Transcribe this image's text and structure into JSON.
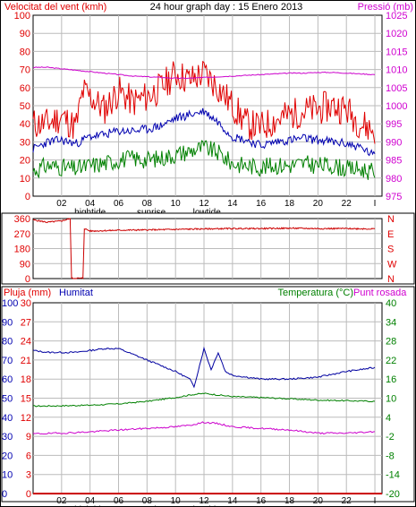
{
  "colors": {
    "wind_axis": "#e00000",
    "pressure_axis": "#d000d0",
    "gust": "#e00000",
    "average": "#0000b0",
    "minimum": "#008000",
    "pressure": "#cc00cc",
    "direction": "#cc0000",
    "humidity": "#0000a0",
    "temperature": "#008000",
    "dewpoint": "#cc00cc",
    "rain": "#cc0000",
    "rain_axis": "#e00000",
    "humidity_axis": "#0000b0",
    "temp_axis": "#008000",
    "dew_label": "#d000d0",
    "grid": "#bbbbbb",
    "frame": "#000000"
  },
  "header": {
    "left": "Velocitat del vent (kmh)",
    "center": "24 hour graph day : 15 Enero 2013",
    "right": "Pressió (mb)"
  },
  "x_axis": {
    "tick_labels": [
      "02",
      "04",
      "06",
      "08",
      "10",
      "12",
      "14",
      "16",
      "18",
      "20",
      "22",
      "I"
    ],
    "tick_hours": [
      2,
      4,
      6,
      8,
      10,
      12,
      14,
      16,
      18,
      20,
      22,
      24
    ],
    "events": [
      {
        "label": "hightide",
        "hour": 4.0
      },
      {
        "label": "sunrise",
        "hour": 8.3
      },
      {
        "label": "lowtide",
        "hour": 12.2
      }
    ]
  },
  "chart_data": [
    {
      "type": "line",
      "title": "",
      "x_range_hours": [
        0,
        24.5
      ],
      "left_axis": {
        "label": "Velocitat del vent (kmh)",
        "ylim": [
          0,
          100
        ],
        "ticks": [
          0,
          10,
          20,
          30,
          40,
          50,
          60,
          70,
          80,
          90,
          100
        ]
      },
      "right_axis": {
        "label": "Pressió (mb)",
        "ylim": [
          975,
          1025
        ],
        "ticks": [
          975,
          980,
          985,
          990,
          995,
          1000,
          1005,
          1010,
          1015,
          1020,
          1025
        ]
      },
      "grid": true,
      "series": [
        {
          "key": "gust",
          "axis": "left",
          "anchors": [
            [
              0,
              40
            ],
            [
              1,
              40
            ],
            [
              2,
              44
            ],
            [
              3,
              38
            ],
            [
              3.5,
              58
            ],
            [
              4,
              55
            ],
            [
              5,
              48
            ],
            [
              6,
              58
            ],
            [
              7,
              52
            ],
            [
              8,
              55
            ],
            [
              9,
              60
            ],
            [
              10,
              68
            ],
            [
              11,
              64
            ],
            [
              12,
              68
            ],
            [
              13,
              60
            ],
            [
              14,
              50
            ],
            [
              15,
              40
            ],
            [
              16,
              38
            ],
            [
              17,
              42
            ],
            [
              18,
              45
            ],
            [
              19,
              47
            ],
            [
              20,
              48
            ],
            [
              21,
              50
            ],
            [
              22,
              48
            ],
            [
              23,
              40
            ],
            [
              24,
              36
            ]
          ]
        },
        {
          "key": "average",
          "axis": "left",
          "anchors": [
            [
              0,
              26
            ],
            [
              1,
              30
            ],
            [
              2,
              31
            ],
            [
              3,
              29
            ],
            [
              4,
              33
            ],
            [
              5,
              34
            ],
            [
              6,
              36
            ],
            [
              7,
              36
            ],
            [
              8,
              37
            ],
            [
              9,
              39
            ],
            [
              10,
              43
            ],
            [
              11,
              45
            ],
            [
              12,
              47
            ],
            [
              13,
              41
            ],
            [
              14,
              33
            ],
            [
              15,
              31
            ],
            [
              16,
              28
            ],
            [
              17,
              30
            ],
            [
              18,
              31
            ],
            [
              19,
              32
            ],
            [
              20,
              31
            ],
            [
              21,
              30
            ],
            [
              22,
              29
            ],
            [
              23,
              27
            ],
            [
              24,
              22
            ]
          ]
        },
        {
          "key": "minimum",
          "axis": "left",
          "anchors": [
            [
              0,
              14
            ],
            [
              1,
              17
            ],
            [
              2,
              16
            ],
            [
              3,
              15
            ],
            [
              4,
              17
            ],
            [
              5,
              18
            ],
            [
              6,
              20
            ],
            [
              7,
              21
            ],
            [
              8,
              20
            ],
            [
              9,
              21
            ],
            [
              10,
              23
            ],
            [
              11,
              25
            ],
            [
              12,
              27
            ],
            [
              13,
              24
            ],
            [
              14,
              18
            ],
            [
              15,
              17
            ],
            [
              16,
              16
            ],
            [
              17,
              17
            ],
            [
              18,
              17
            ],
            [
              19,
              18
            ],
            [
              20,
              17
            ],
            [
              21,
              17
            ],
            [
              22,
              15
            ],
            [
              23,
              15
            ],
            [
              24,
              13
            ]
          ]
        },
        {
          "key": "pressure",
          "axis": "right",
          "anchors": [
            [
              0,
              1010.6
            ],
            [
              1,
              1010.6
            ],
            [
              2,
              1010.2
            ],
            [
              3,
              1009.8
            ],
            [
              4,
              1009.4
            ],
            [
              5,
              1009.0
            ],
            [
              6,
              1008.6
            ],
            [
              7,
              1008.2
            ],
            [
              8,
              1008.0
            ],
            [
              9,
              1007.8
            ],
            [
              10,
              1007.6
            ],
            [
              11,
              1007.6
            ],
            [
              12,
              1007.8
            ],
            [
              13,
              1008.0
            ],
            [
              14,
              1008.2
            ],
            [
              15,
              1008.4
            ],
            [
              16,
              1008.6
            ],
            [
              17,
              1008.8
            ],
            [
              18,
              1009.0
            ],
            [
              19,
              1009.0
            ],
            [
              20,
              1009.2
            ],
            [
              21,
              1009.2
            ],
            [
              22,
              1009.0
            ],
            [
              23,
              1008.8
            ],
            [
              24,
              1008.6
            ]
          ]
        }
      ]
    },
    {
      "type": "line",
      "title": "",
      "x_range_hours": [
        0,
        24.5
      ],
      "left_axis": {
        "ylim": [
          0,
          360
        ],
        "ticks": [
          0,
          90,
          180,
          270,
          360
        ]
      },
      "right_axis": {
        "ticks": [
          "N",
          "E",
          "S",
          "W",
          "N"
        ]
      },
      "grid": true,
      "series": [
        {
          "key": "direction",
          "anchors": [
            [
              0,
              352
            ],
            [
              1,
              338
            ],
            [
              2,
              346
            ],
            [
              2.6,
              360
            ],
            [
              2.7,
              2
            ],
            [
              3.5,
              2
            ],
            [
              3.6,
              300
            ],
            [
              4,
              285
            ],
            [
              6,
              290
            ],
            [
              8,
              292
            ],
            [
              10,
              295
            ],
            [
              12,
              298
            ],
            [
              14,
              300
            ],
            [
              16,
              300
            ],
            [
              18,
              302
            ],
            [
              20,
              300
            ],
            [
              22,
              300
            ],
            [
              24,
              298
            ]
          ]
        }
      ]
    },
    {
      "type": "line",
      "title": "",
      "x_range_hours": [
        0,
        24.5
      ],
      "left_axis_rain": {
        "label": "Pluja (mm)",
        "ylim": [
          0,
          30
        ],
        "ticks": [
          0,
          3,
          6,
          9,
          12,
          15,
          18,
          21,
          24,
          27,
          30
        ]
      },
      "left_axis_humidity": {
        "label": "Humitat",
        "ylim": [
          0,
          100
        ],
        "ticks": [
          0,
          10,
          20,
          30,
          40,
          50,
          60,
          70,
          80,
          90,
          100
        ]
      },
      "right_axis": {
        "label": "Temperatura (°C)",
        "ylim": [
          -20,
          40
        ],
        "ticks": [
          -20,
          -14,
          -8,
          -2,
          4,
          10,
          16,
          22,
          28,
          34,
          40
        ]
      },
      "extra_label": "Punt rosada",
      "grid": true,
      "series": [
        {
          "key": "humidity",
          "axis": "humidity",
          "anchors": [
            [
              0,
              75
            ],
            [
              1,
              74
            ],
            [
              2,
              74
            ],
            [
              3,
              74
            ],
            [
              4,
              75
            ],
            [
              5,
              76
            ],
            [
              6,
              76
            ],
            [
              7,
              73
            ],
            [
              8,
              70
            ],
            [
              9,
              67
            ],
            [
              10,
              64
            ],
            [
              11,
              60
            ],
            [
              11.3,
              56
            ],
            [
              12,
              76
            ],
            [
              12.5,
              65
            ],
            [
              13,
              74
            ],
            [
              13.5,
              64
            ],
            [
              14,
              62
            ],
            [
              16,
              60
            ],
            [
              18,
              60
            ],
            [
              20,
              61
            ],
            [
              22,
              64
            ],
            [
              24,
              66
            ]
          ]
        },
        {
          "key": "temperature",
          "axis": "temp",
          "anchors": [
            [
              0,
              7.5
            ],
            [
              2,
              7.6
            ],
            [
              4,
              7.8
            ],
            [
              6,
              8.2
            ],
            [
              8,
              9.0
            ],
            [
              10,
              10.2
            ],
            [
              11,
              11.0
            ],
            [
              12,
              11.5
            ],
            [
              13,
              11.0
            ],
            [
              14,
              10.5
            ],
            [
              16,
              10.2
            ],
            [
              18,
              9.8
            ],
            [
              20,
              9.4
            ],
            [
              22,
              9.2
            ],
            [
              24,
              9.0
            ]
          ]
        },
        {
          "key": "dewpoint",
          "axis": "temp",
          "anchors": [
            [
              0,
              -1.2
            ],
            [
              2,
              -1.0
            ],
            [
              4,
              -0.6
            ],
            [
              6,
              0.0
            ],
            [
              8,
              0.5
            ],
            [
              10,
              1.0
            ],
            [
              11,
              1.5
            ],
            [
              12,
              2.4
            ],
            [
              13,
              2.0
            ],
            [
              14,
              1.0
            ],
            [
              16,
              0.5
            ],
            [
              18,
              0.0
            ],
            [
              20,
              -1.0
            ],
            [
              22,
              -1.0
            ],
            [
              24,
              -0.5
            ]
          ]
        },
        {
          "key": "rain",
          "axis": "rain",
          "anchors": [
            [
              0,
              0
            ],
            [
              24.5,
              0
            ]
          ]
        }
      ]
    }
  ],
  "panel3_labels": {
    "rain": "Pluja (mm)",
    "humidity": "Humitat",
    "temperature": "Temperatura (°C)",
    "dewpoint": "Punt rosada"
  }
}
